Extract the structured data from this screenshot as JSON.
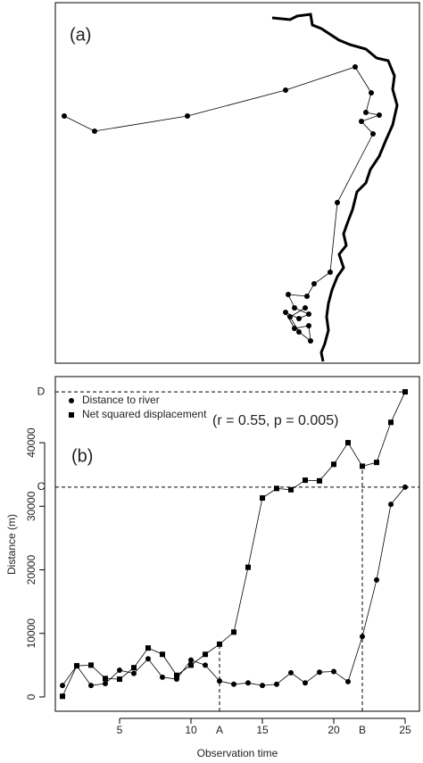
{
  "map": {
    "label": "(a)"
  },
  "chart_data": {
    "type": "line",
    "panel_label": "(b)",
    "x_label": "Observation time",
    "y_label": "Distance (m)",
    "annotation": "(r = 0.55, p = 0.005)",
    "x": [
      1,
      2,
      3,
      4,
      5,
      6,
      7,
      8,
      9,
      10,
      11,
      12,
      13,
      14,
      15,
      16,
      17,
      18,
      19,
      20,
      21,
      22,
      23,
      24,
      25
    ],
    "series": [
      {
        "name": "Distance to river",
        "color": "#000000",
        "marker": "circle",
        "values": [
          1800,
          4900,
          1800,
          2100,
          4200,
          3700,
          6000,
          3100,
          2800,
          5800,
          5000,
          2500,
          2000,
          2200,
          1800,
          2000,
          3800,
          2200,
          3900,
          4000,
          2400,
          9500,
          18400,
          30300,
          33000
        ]
      },
      {
        "name": "Net squared displacement",
        "color": "#000000",
        "marker": "square",
        "values": [
          100,
          4900,
          5000,
          2900,
          2800,
          4600,
          7700,
          6700,
          3400,
          5000,
          6700,
          8300,
          10200,
          20400,
          31300,
          32800,
          32600,
          34100,
          34000,
          36600,
          40000,
          36300,
          36900,
          43200,
          48000
        ]
      }
    ],
    "xlim": [
      0.5,
      26
    ],
    "ylim": [
      -2250,
      50400
    ],
    "xticks": [
      5,
      10,
      15,
      20,
      25
    ],
    "yticks": [
      0,
      10000,
      20000,
      30000,
      40000
    ],
    "hlines": [
      {
        "label": "D",
        "y": 48000
      },
      {
        "label": "C",
        "y": 33000
      }
    ],
    "vlines": [
      {
        "label": "A",
        "x": 12
      },
      {
        "label": "B",
        "x": 22
      }
    ]
  }
}
